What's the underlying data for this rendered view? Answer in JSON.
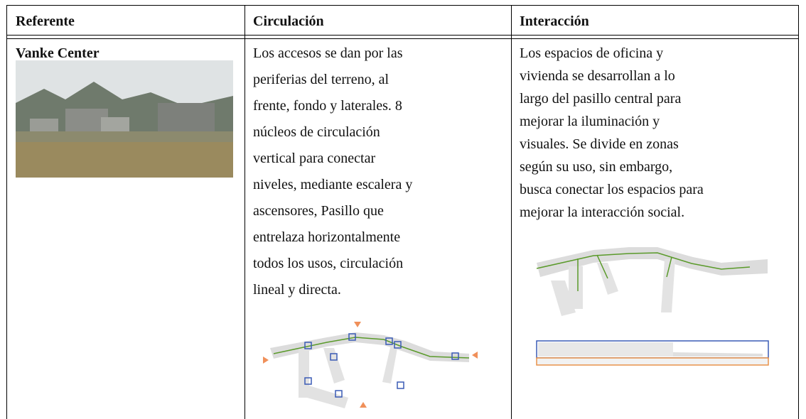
{
  "table": {
    "header": [
      "Referente",
      "Circulación",
      "Interacción"
    ],
    "rows": [
      {
        "referente": "Vanke Center",
        "circulacion": [
          "Los accesos se dan por las",
          "periferias del terreno, al",
          "frente, fondo y laterales. 8",
          "núcleos de circulación",
          "vertical para conectar",
          "niveles, mediante escalera y",
          "ascensores, Pasillo que",
          "entrelaza horizontalmente",
          "todos los usos, circulación",
          "lineal y directa."
        ],
        "interaccion": [
          "Los espacios de oficina y",
          "vivienda se desarrollan a lo",
          "largo del pasillo central para",
          "mejorar la iluminación y",
          "visuales. Se divide en zonas",
          "según su uso, sin embargo,",
          "busca conectar los espacios para",
          "mejorar la interacción social."
        ]
      }
    ]
  }
}
